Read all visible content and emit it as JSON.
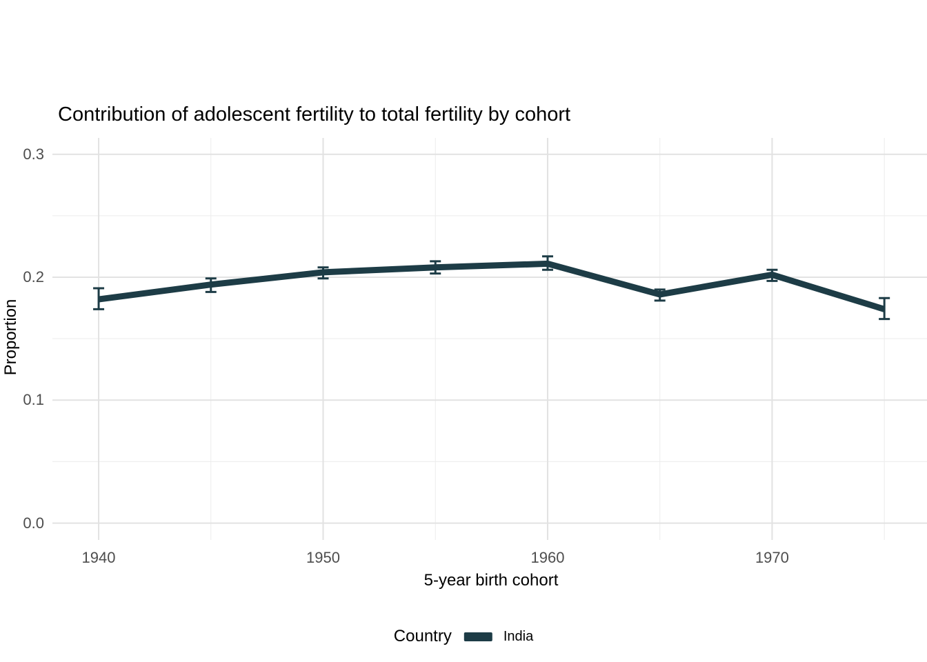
{
  "title": "Contribution of adolescent fertility to total fertility by cohort",
  "chart_data": {
    "type": "line",
    "title": "Contribution of adolescent fertility to total fertility by cohort",
    "xlabel": "5-year birth cohort",
    "ylabel": "Proportion",
    "x": [
      1940,
      1945,
      1950,
      1955,
      1960,
      1965,
      1970,
      1975
    ],
    "series": [
      {
        "name": "India",
        "color": "#1d3c46",
        "values": [
          0.182,
          0.194,
          0.204,
          0.208,
          0.211,
          0.186,
          0.202,
          0.174
        ],
        "ci_low": [
          0.174,
          0.188,
          0.199,
          0.203,
          0.206,
          0.181,
          0.197,
          0.166
        ],
        "ci_high": [
          0.191,
          0.199,
          0.208,
          0.213,
          0.217,
          0.19,
          0.206,
          0.183
        ]
      }
    ],
    "x_ticks": [
      {
        "value": 1940,
        "label": "1940"
      },
      {
        "value": 1950,
        "label": "1950"
      },
      {
        "value": 1960,
        "label": "1960"
      },
      {
        "value": 1970,
        "label": "1970"
      }
    ],
    "y_ticks": [
      {
        "value": 0.0,
        "label": "0.0"
      },
      {
        "value": 0.1,
        "label": "0.1"
      },
      {
        "value": 0.2,
        "label": "0.2"
      },
      {
        "value": 0.3,
        "label": "0.3"
      }
    ],
    "x_minor_gridlines": [
      1945,
      1955,
      1965,
      1975
    ],
    "y_minor_gridlines": [
      0.05,
      0.15,
      0.25
    ],
    "xlim": [
      1937.94,
      1976.9
    ],
    "ylim": [
      -0.0137,
      0.3133
    ],
    "grid": true,
    "legend": {
      "title": "Country",
      "position": "bottom",
      "entries": [
        {
          "label": "India",
          "color": "#1d3c46"
        }
      ]
    }
  },
  "colors": {
    "line": "#1d3c46",
    "grid_major": "#e2e2e2",
    "grid_minor": "#ececec",
    "tick_label": "#4d4d4d",
    "text": "#000000",
    "background": "#ffffff"
  }
}
